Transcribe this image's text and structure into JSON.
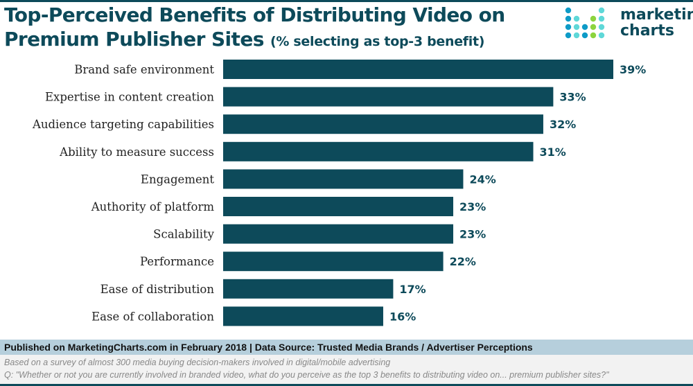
{
  "title": "Top-Perceived Benefits of Distributing Video on",
  "title_line2": "Premium Publisher Sites",
  "subtitle": "(% selecting as top-3 benefit)",
  "logo": {
    "line1": "marketing",
    "line2": "charts"
  },
  "colors": {
    "bar": "#0d4a5a",
    "label": "#0d4a5a"
  },
  "chart_data": {
    "type": "bar",
    "orientation": "horizontal",
    "title": "Top-Perceived Benefits of Distributing Video on Premium Publisher Sites (% selecting as top-3 benefit)",
    "categories": [
      "Brand safe environment",
      "Expertise in content creation",
      "Audience targeting capabilities",
      "Ability to measure success",
      "Engagement",
      "Authority of platform",
      "Scalability",
      "Performance",
      "Ease of distribution",
      "Ease of collaboration"
    ],
    "values": [
      39,
      33,
      32,
      31,
      24,
      23,
      23,
      22,
      17,
      16
    ],
    "value_labels": [
      "39%",
      "33%",
      "32%",
      "31%",
      "24%",
      "23%",
      "23%",
      "22%",
      "17%",
      "16%"
    ],
    "xlim": [
      0,
      39
    ],
    "grid": false
  },
  "footer": {
    "source": "Published on MarketingCharts.com in February 2018 | Data Source: Trusted Media Brands / Advertiser Perceptions",
    "note1": "Based on a survey of almost 300 media buying decision-makers involved in digital/mobile advertising",
    "note2": "Q: \"Whether or not you are currently involved in branded video, what do you perceive as the top 3 benefits to distributing video on... premium publisher sites?\""
  }
}
